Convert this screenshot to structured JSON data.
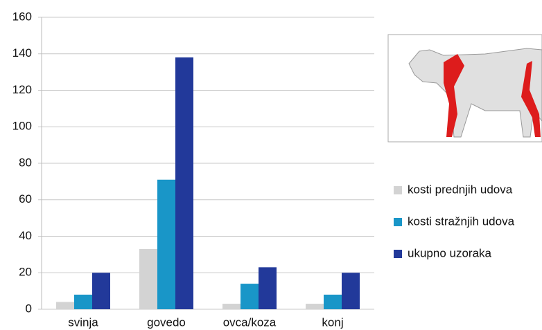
{
  "chart_data": {
    "type": "bar",
    "categories": [
      "svinja",
      "govedo",
      "ovca/koza",
      "konj"
    ],
    "series": [
      {
        "name": "kosti prednjih udova",
        "color": "#d3d3d3",
        "values": [
          4,
          33,
          3,
          3
        ]
      },
      {
        "name": "kosti stražnjih udova",
        "color": "#1996c8",
        "values": [
          8,
          71,
          14,
          8
        ]
      },
      {
        "name": "ukupno uzoraka",
        "color": "#22399a",
        "values": [
          20,
          138,
          23,
          20
        ]
      }
    ],
    "ylim": [
      0,
      160
    ],
    "yticks": [
      0,
      20,
      40,
      60,
      80,
      100,
      120,
      140,
      160
    ],
    "grid": true,
    "legend": "right"
  }
}
